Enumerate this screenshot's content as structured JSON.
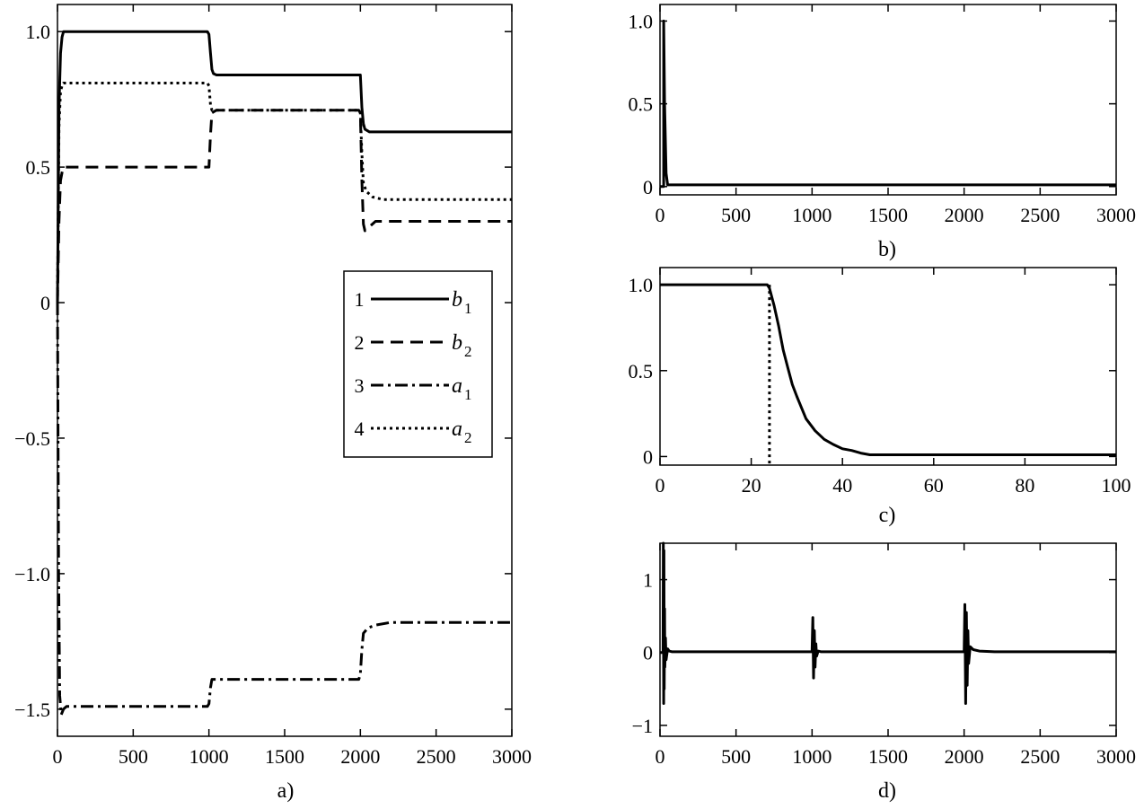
{
  "chart_data": [
    {
      "id": "a",
      "type": "line",
      "panel_label": "a)",
      "xlim": [
        0,
        3000
      ],
      "ylim": [
        -1.6,
        1.1
      ],
      "xticks": [
        0,
        500,
        1000,
        1500,
        2000,
        2500,
        3000
      ],
      "yticks": [
        -1.5,
        -1.0,
        -0.5,
        0,
        0.5,
        1.0
      ],
      "xtick_labels": [
        "0",
        "500",
        "1000",
        "1500",
        "2000",
        "2500",
        "3000"
      ],
      "ytick_labels": [
        "−1.5",
        "−1.0",
        "−0.5",
        "0",
        "0.5",
        "1.0"
      ],
      "legend": {
        "placement": "right-middle",
        "entries": [
          {
            "number": "1",
            "name": "b",
            "sub": "1",
            "style": "solid"
          },
          {
            "number": "2",
            "name": "b",
            "sub": "2",
            "style": "dashed"
          },
          {
            "number": "3",
            "name": "a",
            "sub": "1",
            "style": "dashdot"
          },
          {
            "number": "4",
            "name": "a",
            "sub": "2",
            "style": "dotted"
          }
        ]
      },
      "series": [
        {
          "style": "solid",
          "x": [
            0,
            10,
            20,
            30,
            40,
            60,
            990,
            1000,
            1010,
            1020,
            1030,
            1050,
            1990,
            2000,
            2010,
            2020,
            2030,
            2060,
            3000
          ],
          "y": [
            0,
            0.72,
            0.92,
            0.98,
            1.0,
            1.0,
            1.0,
            0.99,
            0.92,
            0.86,
            0.845,
            0.84,
            0.84,
            0.84,
            0.72,
            0.66,
            0.64,
            0.63,
            0.63
          ]
        },
        {
          "style": "dashed",
          "x": [
            0,
            10,
            20,
            30,
            40,
            60,
            990,
            1000,
            1010,
            1020,
            1050,
            1990,
            2000,
            2010,
            2020,
            2030,
            2060,
            2100,
            3000
          ],
          "y": [
            0,
            0.3,
            0.45,
            0.48,
            0.5,
            0.5,
            0.5,
            0.5,
            0.62,
            0.7,
            0.71,
            0.71,
            0.7,
            0.45,
            0.29,
            0.265,
            0.28,
            0.3,
            0.3
          ]
        },
        {
          "style": "dashdot",
          "x": [
            0,
            8,
            15,
            25,
            40,
            60,
            990,
            1000,
            1010,
            1020,
            1050,
            1990,
            2000,
            2010,
            2020,
            2050,
            2100,
            2200,
            3000
          ],
          "y": [
            0,
            -1.0,
            -1.45,
            -1.52,
            -1.5,
            -1.49,
            -1.49,
            -1.48,
            -1.42,
            -1.39,
            -1.39,
            -1.39,
            -1.37,
            -1.28,
            -1.22,
            -1.2,
            -1.19,
            -1.18,
            -1.18
          ]
        },
        {
          "style": "dotted",
          "x": [
            0,
            10,
            20,
            30,
            40,
            60,
            990,
            1000,
            1010,
            1020,
            1050,
            1990,
            2000,
            2010,
            2020,
            2040,
            2080,
            2150,
            3000
          ],
          "y": [
            0,
            0.65,
            0.78,
            0.8,
            0.81,
            0.81,
            0.81,
            0.8,
            0.73,
            0.71,
            0.71,
            0.71,
            0.7,
            0.55,
            0.44,
            0.41,
            0.39,
            0.38,
            0.38
          ]
        }
      ]
    },
    {
      "id": "b",
      "type": "line",
      "panel_label": "b)",
      "xlim": [
        0,
        3000
      ],
      "ylim": [
        -0.05,
        1.1
      ],
      "xticks": [
        0,
        500,
        1000,
        1500,
        2000,
        2500,
        3000
      ],
      "yticks": [
        0,
        0.5,
        1.0
      ],
      "xtick_labels": [
        "0",
        "500",
        "1000",
        "1500",
        "2000",
        "2500",
        "3000"
      ],
      "ytick_labels": [
        "0",
        "0.5",
        "1.0"
      ],
      "series": [
        {
          "style": "solid",
          "x": [
            0,
            24,
            24,
            30,
            40,
            50,
            3000
          ],
          "y": [
            0,
            0,
            1.0,
            0.5,
            0.08,
            0.01,
            0.01
          ]
        }
      ]
    },
    {
      "id": "c",
      "type": "line",
      "panel_label": "c)",
      "xlim": [
        0,
        100
      ],
      "ylim": [
        -0.05,
        1.1
      ],
      "xticks": [
        0,
        20,
        40,
        60,
        80,
        100
      ],
      "yticks": [
        0,
        0.5,
        1.0
      ],
      "xtick_labels": [
        "0",
        "20",
        "40",
        "60",
        "80",
        "100"
      ],
      "ytick_labels": [
        "0",
        "0.5",
        "1.0"
      ],
      "series": [
        {
          "style": "solid",
          "x": [
            0,
            23.5,
            24,
            25,
            26,
            27,
            28,
            29,
            30,
            32,
            34,
            36,
            38,
            40,
            42,
            44,
            46,
            50,
            60,
            100
          ],
          "y": [
            1.0,
            1.0,
            0.98,
            0.88,
            0.76,
            0.62,
            0.52,
            0.42,
            0.35,
            0.22,
            0.15,
            0.1,
            0.07,
            0.045,
            0.035,
            0.02,
            0.01,
            0.01,
            0.01,
            0.01
          ]
        },
        {
          "style": "dotted",
          "x": [
            24,
            24
          ],
          "y": [
            1.0,
            -0.05
          ]
        }
      ]
    },
    {
      "id": "d",
      "type": "line",
      "panel_label": "d)",
      "xlim": [
        0,
        3000
      ],
      "ylim": [
        -1.15,
        1.5
      ],
      "xticks": [
        0,
        500,
        1000,
        1500,
        2000,
        2500,
        3000
      ],
      "yticks": [
        -1,
        0,
        1
      ],
      "xtick_labels": [
        "0",
        "500",
        "1000",
        "1500",
        "2000",
        "2500",
        "3000"
      ],
      "ytick_labels": [
        "−1",
        "0",
        "1"
      ],
      "series": [
        {
          "style": "solid",
          "x": [
            0,
            20,
            22,
            24,
            26,
            28,
            30,
            32,
            36,
            40,
            50,
            60,
            80,
            1000,
            1005,
            1010,
            1015,
            1020,
            1025,
            1030,
            1040,
            1060,
            2000,
            2005,
            2010,
            2015,
            2020,
            2025,
            2030,
            2040,
            2060,
            2100,
            2200,
            3000
          ],
          "y": [
            0,
            0,
            1.5,
            -0.7,
            1.4,
            -0.5,
            0.6,
            -0.2,
            0.2,
            -0.1,
            0.05,
            0.02,
            0.01,
            0.01,
            0.48,
            -0.35,
            0.3,
            -0.2,
            0.12,
            -0.05,
            0.02,
            0.01,
            0.01,
            0.66,
            -0.7,
            0.55,
            -0.45,
            0.3,
            -0.15,
            0.08,
            0.04,
            0.02,
            0.01,
            0.01
          ]
        }
      ]
    }
  ]
}
